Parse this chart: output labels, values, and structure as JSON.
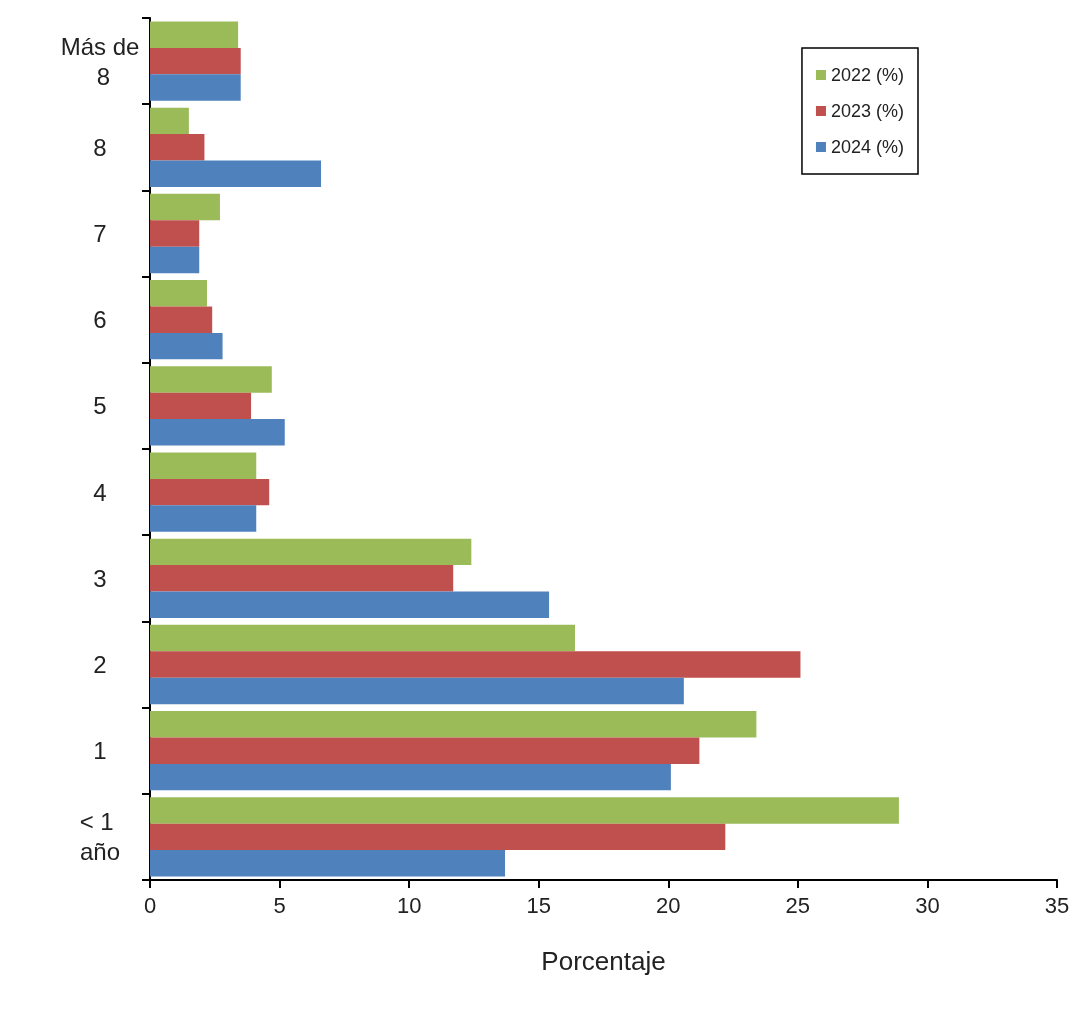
{
  "chart_data": {
    "type": "bar",
    "orientation": "horizontal",
    "xlabel": "Porcentaje",
    "categories": [
      "Más de 8",
      "8",
      "7",
      "6",
      "5",
      "4",
      "3",
      "2",
      "1",
      "< 1 año"
    ],
    "series": [
      {
        "name": "2022 (%)",
        "color": "#9bbb59",
        "values": [
          3.4,
          1.5,
          2.7,
          2.2,
          4.7,
          4.1,
          12.4,
          16.4,
          23.4,
          28.9
        ]
      },
      {
        "name": "2023 (%)",
        "color": "#c0504d",
        "values": [
          3.5,
          2.1,
          1.9,
          2.4,
          3.9,
          4.6,
          11.7,
          25.1,
          21.2,
          22.2
        ]
      },
      {
        "name": "2024 (%)",
        "color": "#4f81bd",
        "values": [
          3.5,
          6.6,
          1.9,
          2.8,
          5.2,
          4.1,
          15.4,
          20.6,
          20.1,
          13.7
        ]
      }
    ],
    "xlim": [
      0,
      35
    ],
    "xticks": [
      0,
      5,
      10,
      15,
      20,
      25,
      30,
      35
    ],
    "grid": false,
    "legend": "top right"
  }
}
